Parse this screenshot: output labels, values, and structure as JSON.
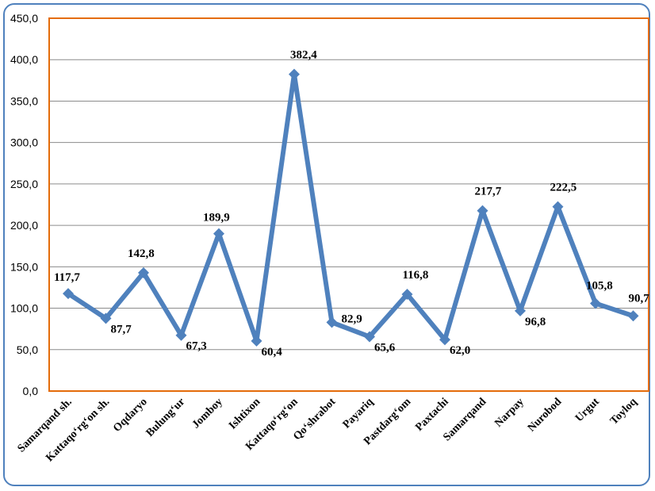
{
  "chart_data": {
    "type": "line",
    "categories": [
      "Samarqand sh.",
      "Kattaqo‘rg‘on sh.",
      "Oqdaryo",
      "Bulung‘ur",
      "Jomboy",
      "Ishtixon",
      "Kattaqo‘rg‘on",
      "Qo‘shrabot",
      "Payariq",
      "Pastdarg‘om",
      "Paxtachi",
      "Samarqand",
      "Narpay",
      "Nurobod",
      "Urgut",
      "Toyloq"
    ],
    "values": [
      117.7,
      87.7,
      142.8,
      67.3,
      189.9,
      60.4,
      382.4,
      82.9,
      65.6,
      116.8,
      62.0,
      217.7,
      96.8,
      222.5,
      105.8,
      90.7
    ],
    "data_labels": [
      "117,7",
      "87,7",
      "142,8",
      "67,3",
      "189,9",
      "60,4",
      "382,4",
      "82,9",
      "65,6",
      "116,8",
      "62,0",
      "217,7",
      "96,8",
      "222,5",
      "105,8",
      "90,7"
    ],
    "ylim": [
      0,
      450
    ],
    "yticks": [
      0,
      50,
      100,
      150,
      200,
      250,
      300,
      350,
      400,
      450
    ],
    "ytick_labels": [
      "0,0",
      "50,0",
      "100,0",
      "150,0",
      "200,0",
      "250,0",
      "300,0",
      "350,0",
      "400,0",
      "450,0"
    ],
    "grid": true,
    "legend": "none",
    "colors": {
      "line": "#4f81bd",
      "plot_border": "#e46c0a",
      "gridline": "#8c8c8c",
      "frame": "#4f81bd"
    }
  }
}
